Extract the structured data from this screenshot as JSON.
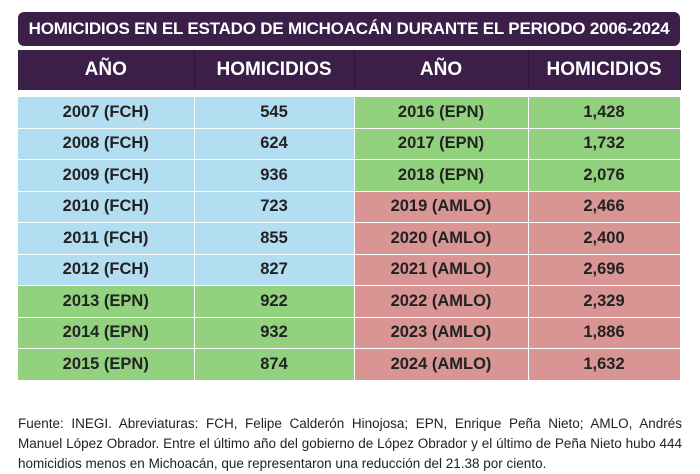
{
  "title": "HOMICIDIOS EN EL ESTADO DE MICHOACÁN DURANTE EL PERIODO 2006-2024",
  "headers": [
    "AÑO",
    "HOMICIDIOS",
    "AÑO",
    "HOMICIDIOS"
  ],
  "colors": {
    "header_bg": "#3b1f48",
    "FCH": "#b3ddf0",
    "EPN": "#92d27e",
    "AMLO": "#d99494"
  },
  "rows": [
    {
      "left_year": "2007 (FCH)",
      "left_value": "545",
      "left_party": "FCH",
      "right_year": "2016 (EPN)",
      "right_value": "1,428",
      "right_party": "EPN"
    },
    {
      "left_year": "2008 (FCH)",
      "left_value": "624",
      "left_party": "FCH",
      "right_year": "2017 (EPN)",
      "right_value": "1,732",
      "right_party": "EPN"
    },
    {
      "left_year": "2009 (FCH)",
      "left_value": "936",
      "left_party": "FCH",
      "right_year": "2018 (EPN)",
      "right_value": "2,076",
      "right_party": "EPN"
    },
    {
      "left_year": "2010 (FCH)",
      "left_value": "723",
      "left_party": "FCH",
      "right_year": "2019 (AMLO)",
      "right_value": "2,466",
      "right_party": "AMLO"
    },
    {
      "left_year": "2011 (FCH)",
      "left_value": "855",
      "left_party": "FCH",
      "right_year": "2020 (AMLO)",
      "right_value": "2,400",
      "right_party": "AMLO"
    },
    {
      "left_year": "2012 (FCH)",
      "left_value": "827",
      "left_party": "FCH",
      "right_year": "2021 (AMLO)",
      "right_value": "2,696",
      "right_party": "AMLO"
    },
    {
      "left_year": "2013 (EPN)",
      "left_value": "922",
      "left_party": "EPN",
      "right_year": "2022 (AMLO)",
      "right_value": "2,329",
      "right_party": "AMLO"
    },
    {
      "left_year": "2014 (EPN)",
      "left_value": "932",
      "left_party": "EPN",
      "right_year": "2023 (AMLO)",
      "right_value": "1,886",
      "right_party": "AMLO"
    },
    {
      "left_year": "2015 (EPN)",
      "left_value": "874",
      "left_party": "EPN",
      "right_year": "2024 (AMLO)",
      "right_value": "1,632",
      "right_party": "AMLO"
    }
  ],
  "footnote": "Fuente: INEGI. Abreviaturas: FCH, Felipe Calderón Hinojosa; EPN, Enrique Peña Nieto; AMLO, Andrés Manuel López Obrador. Entre el último año del gobierno de López Obrador y el último de Peña Nieto hubo 444 homicidios menos en Michoacán, que representaron una reducción del 21.38 por ciento."
}
